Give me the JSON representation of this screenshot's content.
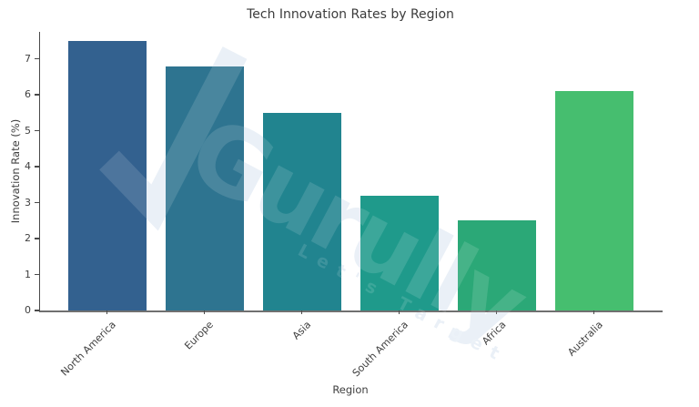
{
  "chart_data": {
    "type": "bar",
    "title": "Tech Innovation Rates by Region",
    "xlabel": "Region",
    "ylabel": "Innovation Rate (%)",
    "categories": [
      "North America",
      "Europe",
      "Asia",
      "South America",
      "Africa",
      "Australia"
    ],
    "values": [
      7.5,
      6.8,
      5.5,
      3.2,
      2.5,
      6.1
    ],
    "bar_colors": [
      "#33618F",
      "#2E7490",
      "#21848F",
      "#1F9A8B",
      "#2BA877",
      "#46BE6F"
    ],
    "ylim": [
      0,
      7.75
    ],
    "yticks": [
      0,
      1,
      2,
      3,
      4,
      5,
      6,
      7
    ],
    "grid": false,
    "legend": "none",
    "x_tick_rotation_deg": 45
  },
  "watermark": {
    "brand": "Gurully",
    "tagline": "Let's Target",
    "under_color": "#e7eef6"
  },
  "colors": {
    "background": "#ffffff",
    "title_text": "#3b3b3b",
    "tick_text": "#3f3f3f",
    "left_spine": "#4a4a4a",
    "bottom_spine": "#707070"
  }
}
